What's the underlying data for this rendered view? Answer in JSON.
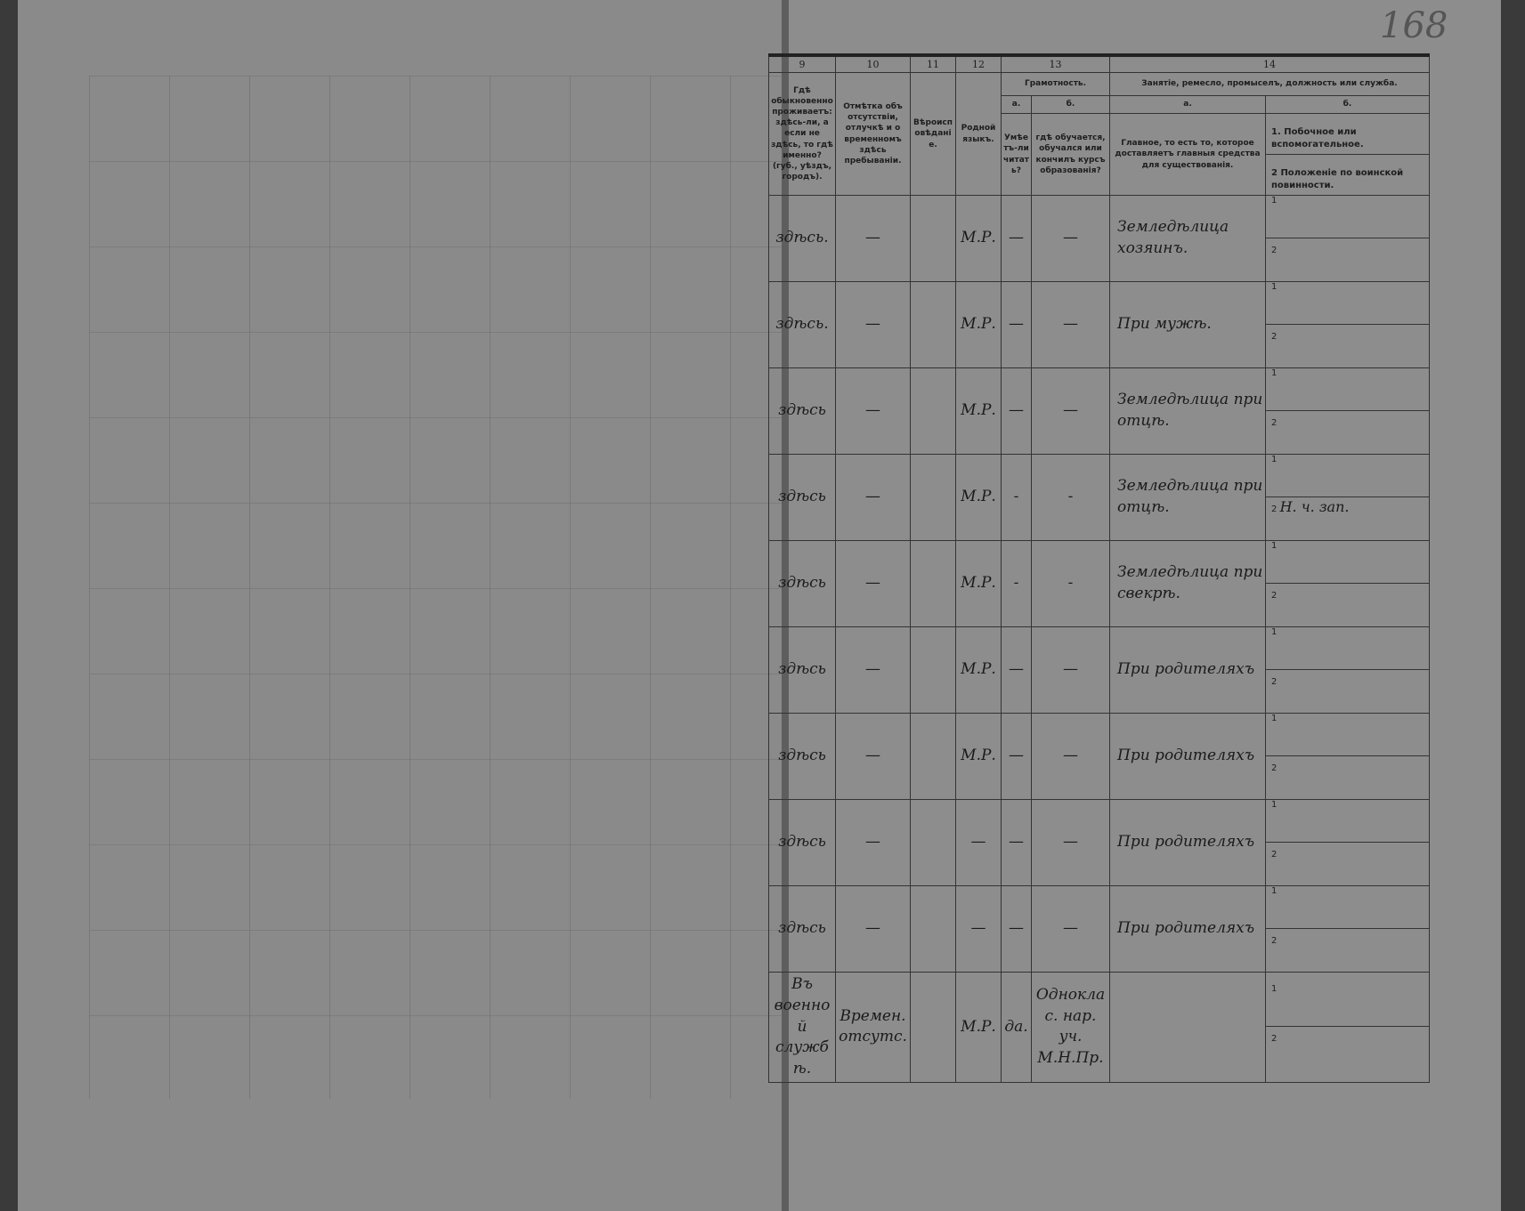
{
  "page_number": "168",
  "columns": {
    "c9_num": "9",
    "c10_num": "10",
    "c11_num": "11",
    "c12_num": "12",
    "c13_num": "13",
    "c14_num": "14",
    "c9": "Гдѣ обыкновенно проживаетъ: здѣсь-ли, а если не здѣсь, то гдѣ именно? (губ., уѣздъ, городъ).",
    "c10": "Отмѣтка объ отсутствіи, отлучкѣ и о временномъ здѣсь пребываніи.",
    "c11": "Вѣроисповѣданіе.",
    "c12": "Родной языкъ.",
    "c13": "Грамотность.",
    "c13a_letter": "а.",
    "c13b_letter": "б.",
    "c13a": "Умѣетъ-ли читать?",
    "c13b": "гдѣ обучается, обучался или кончилъ курсъ образованія?",
    "c14": "Занятіе, ремесло, промыселъ, должность или служба.",
    "c14a_letter": "а.",
    "c14b_letter": "б.",
    "c14a": "Главное, то есть то, которое доставляетъ главныя средства для существованія.",
    "c14b1": "1. Побочное или вспомогательное.",
    "c14b2": "2 Положеніе по воинской повинности."
  },
  "rows": [
    {
      "residence": "здѣсь.",
      "absence": "—",
      "religion": "",
      "language": "М.Р.",
      "reads": "—",
      "school": "—",
      "main": "Земледѣлица хозяинъ.",
      "side1": "1",
      "side2": "2",
      "side2_text": ""
    },
    {
      "residence": "здѣсь.",
      "absence": "—",
      "religion": "",
      "language": "М.Р.",
      "reads": "—",
      "school": "—",
      "main": "При мужѣ.",
      "side1": "1",
      "side2": "2",
      "side2_text": ""
    },
    {
      "residence": "здѣсь",
      "absence": "—",
      "religion": "",
      "language": "М.Р.",
      "reads": "—",
      "school": "—",
      "main": "Земледѣлица при отцѣ.",
      "side1": "1",
      "side2": "2",
      "side2_text": ""
    },
    {
      "residence": "здѣсь",
      "absence": "—",
      "religion": "",
      "language": "М.Р.",
      "reads": "-",
      "school": "-",
      "main": "Земледѣлица при отцѣ.",
      "side1": "1",
      "side2": "2",
      "side2_text": "Н. ч. зап."
    },
    {
      "residence": "здѣсь",
      "absence": "—",
      "religion": "",
      "language": "М.Р.",
      "reads": "-",
      "school": "-",
      "main": "Земледѣлица при свекрѣ.",
      "side1": "1",
      "side2": "2",
      "side2_text": ""
    },
    {
      "residence": "здѣсь",
      "absence": "—",
      "religion": "",
      "language": "М.Р.",
      "reads": "—",
      "school": "—",
      "main": "При родителяхъ",
      "side1": "1",
      "side2": "2",
      "side2_text": ""
    },
    {
      "residence": "здѣсь",
      "absence": "—",
      "religion": "",
      "language": "М.Р.",
      "reads": "—",
      "school": "—",
      "main": "При родителяхъ",
      "side1": "1",
      "side2": "2",
      "side2_text": ""
    },
    {
      "residence": "здѣсь",
      "absence": "—",
      "religion": "",
      "language": "—",
      "reads": "—",
      "school": "—",
      "main": "При родителяхъ",
      "side1": "1",
      "side2": "2",
      "side2_text": ""
    },
    {
      "residence": "здѣсь",
      "absence": "—",
      "religion": "",
      "language": "—",
      "reads": "—",
      "school": "—",
      "main": "При родителяхъ",
      "side1": "1",
      "side2": "2",
      "side2_text": ""
    },
    {
      "residence": "Въ военной службѣ.",
      "absence": "Времен. отсутс.",
      "religion": "",
      "language": "М.Р.",
      "reads": "да.",
      "school": "Одноклас. нар. уч. М.Н.Пр.",
      "main": "",
      "side1": "1",
      "side2": "2",
      "side2_text": ""
    }
  ]
}
